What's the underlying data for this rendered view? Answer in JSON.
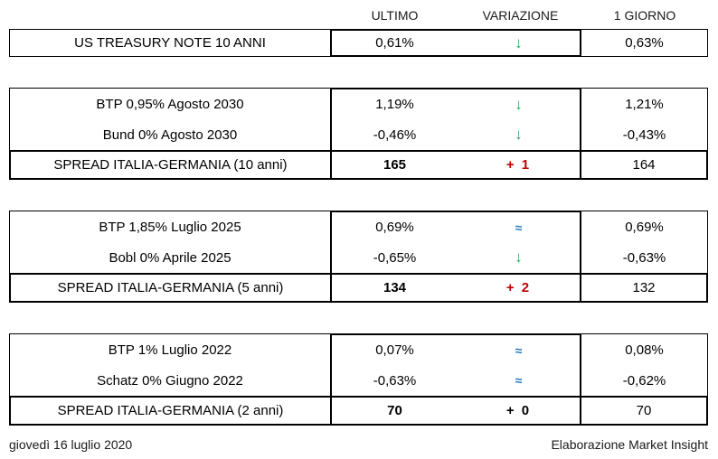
{
  "header": {
    "col_ultimo": "ULTIMO",
    "col_variazione": "VARIAZIONE",
    "col_giorno": "1 GIORNO"
  },
  "colors": {
    "green": "#2BA45C",
    "red": "#C00000",
    "blue": "#2879B8",
    "black": "#000000"
  },
  "sections": [
    {
      "rows": [
        {
          "label": "US TREASURY NOTE 10 ANNI",
          "ultimo": "0,61%",
          "var_symbol": "↓",
          "var_kind": "down",
          "var_color": "green",
          "giorno": "0,63%"
        }
      ],
      "spread": null
    },
    {
      "rows": [
        {
          "label": "BTP 0,95% Agosto 2030",
          "ultimo": "1,19%",
          "var_symbol": "↓",
          "var_kind": "down",
          "var_color": "green",
          "giorno": "1,21%"
        },
        {
          "label": "Bund 0% Agosto 2030",
          "ultimo": "-0,46%",
          "var_symbol": "↓",
          "var_kind": "down",
          "var_color": "green",
          "giorno": "-0,43%"
        }
      ],
      "spread": {
        "label": "SPREAD ITALIA-GERMANIA (10 anni)",
        "ultimo": "165",
        "var_symbol": "+ 1",
        "var_kind": "delta",
        "var_color": "red",
        "giorno": "164"
      }
    },
    {
      "rows": [
        {
          "label": "BTP 1,85% Luglio 2025",
          "ultimo": "0,69%",
          "var_symbol": "≈",
          "var_kind": "approx",
          "var_color": "blue",
          "giorno": "0,69%"
        },
        {
          "label": "Bobl 0% Aprile 2025",
          "ultimo": "-0,65%",
          "var_symbol": "↓",
          "var_kind": "down",
          "var_color": "green",
          "giorno": "-0,63%"
        }
      ],
      "spread": {
        "label": "SPREAD ITALIA-GERMANIA (5 anni)",
        "ultimo": "134",
        "var_symbol": "+ 2",
        "var_kind": "delta",
        "var_color": "red",
        "giorno": "132"
      }
    },
    {
      "rows": [
        {
          "label": "BTP 1% Luglio 2022",
          "ultimo": "0,07%",
          "var_symbol": "≈",
          "var_kind": "approx",
          "var_color": "blue",
          "giorno": "0,08%"
        },
        {
          "label": "Schatz 0% Giugno 2022",
          "ultimo": "-0,63%",
          "var_symbol": "≈",
          "var_kind": "approx",
          "var_color": "blue",
          "giorno": "-0,62%"
        }
      ],
      "spread": {
        "label": "SPREAD ITALIA-GERMANIA (2 anni)",
        "ultimo": "70",
        "var_symbol": "+ 0",
        "var_kind": "delta",
        "var_color": "black",
        "giorno": "70"
      }
    }
  ],
  "footer": {
    "date": "giovedì 16 luglio 2020",
    "credit": "Elaborazione Market Insight"
  }
}
